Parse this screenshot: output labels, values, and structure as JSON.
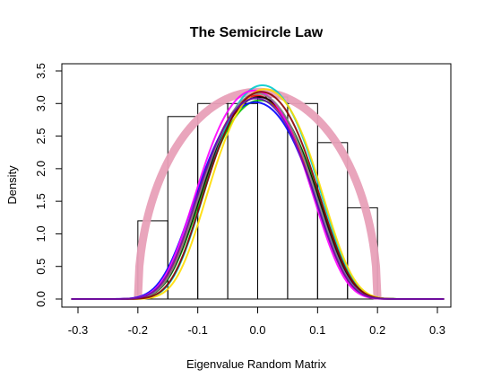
{
  "chart_data": {
    "type": "histogram",
    "title": "The Semicircle Law",
    "xlabel": "Eigenvalue Random Matrix",
    "ylabel": "Density",
    "xlim": [
      -0.33,
      0.33
    ],
    "ylim": [
      0,
      3.5
    ],
    "xticks": [
      -0.3,
      -0.2,
      -0.1,
      0.0,
      0.1,
      0.2,
      0.3
    ],
    "xtick_labels": [
      "-0.3",
      "-0.2",
      "-0.1",
      "0.0",
      "0.1",
      "0.2",
      "0.3"
    ],
    "yticks": [
      0.0,
      0.5,
      1.0,
      1.5,
      2.0,
      2.5,
      3.0,
      3.5
    ],
    "ytick_labels": [
      "0.0",
      "0.5",
      "1.0",
      "1.5",
      "2.0",
      "2.5",
      "3.0",
      "3.5"
    ],
    "bins": [
      {
        "x0": -0.2,
        "x1": -0.15,
        "density": 1.2
      },
      {
        "x0": -0.15,
        "x1": -0.1,
        "density": 2.8
      },
      {
        "x0": -0.1,
        "x1": -0.05,
        "density": 3.0
      },
      {
        "x0": -0.05,
        "x1": 0.0,
        "density": 3.0
      },
      {
        "x0": 0.0,
        "x1": 0.05,
        "density": 3.1
      },
      {
        "x0": 0.05,
        "x1": 0.1,
        "density": 3.0
      },
      {
        "x0": 0.1,
        "x1": 0.15,
        "density": 2.4
      },
      {
        "x0": 0.15,
        "x1": 0.2,
        "density": 1.4
      }
    ],
    "semicircle": {
      "radius": 0.2,
      "peak": 3.18,
      "color": "#e8a0b8"
    },
    "density_curves": [
      {
        "color": "#00c000",
        "sigma": 0.102,
        "peak": 3.05,
        "shift": 0.004
      },
      {
        "color": "#ff0000",
        "sigma": 0.1,
        "peak": 3.12,
        "shift": -0.002
      },
      {
        "color": "#0000ff",
        "sigma": 0.104,
        "peak": 3.02,
        "shift": -0.004
      },
      {
        "color": "#000000",
        "sigma": 0.101,
        "peak": 3.1,
        "shift": 0.002
      },
      {
        "color": "#00cccc",
        "sigma": 0.099,
        "peak": 3.28,
        "shift": 0.008
      },
      {
        "color": "#ff00ff",
        "sigma": 0.1,
        "peak": 3.2,
        "shift": -0.006
      },
      {
        "color": "#ffdd00",
        "sigma": 0.098,
        "peak": 3.22,
        "shift": 0.012
      },
      {
        "color": "#888888",
        "sigma": 0.1,
        "peak": 3.15,
        "shift": 0.0
      },
      {
        "color": "#8b0000",
        "sigma": 0.099,
        "peak": 3.18,
        "shift": 0.006
      },
      {
        "color": "#6a0dad",
        "sigma": 0.101,
        "peak": 3.08,
        "shift": -0.003
      }
    ],
    "grid": false,
    "legend": "none"
  }
}
